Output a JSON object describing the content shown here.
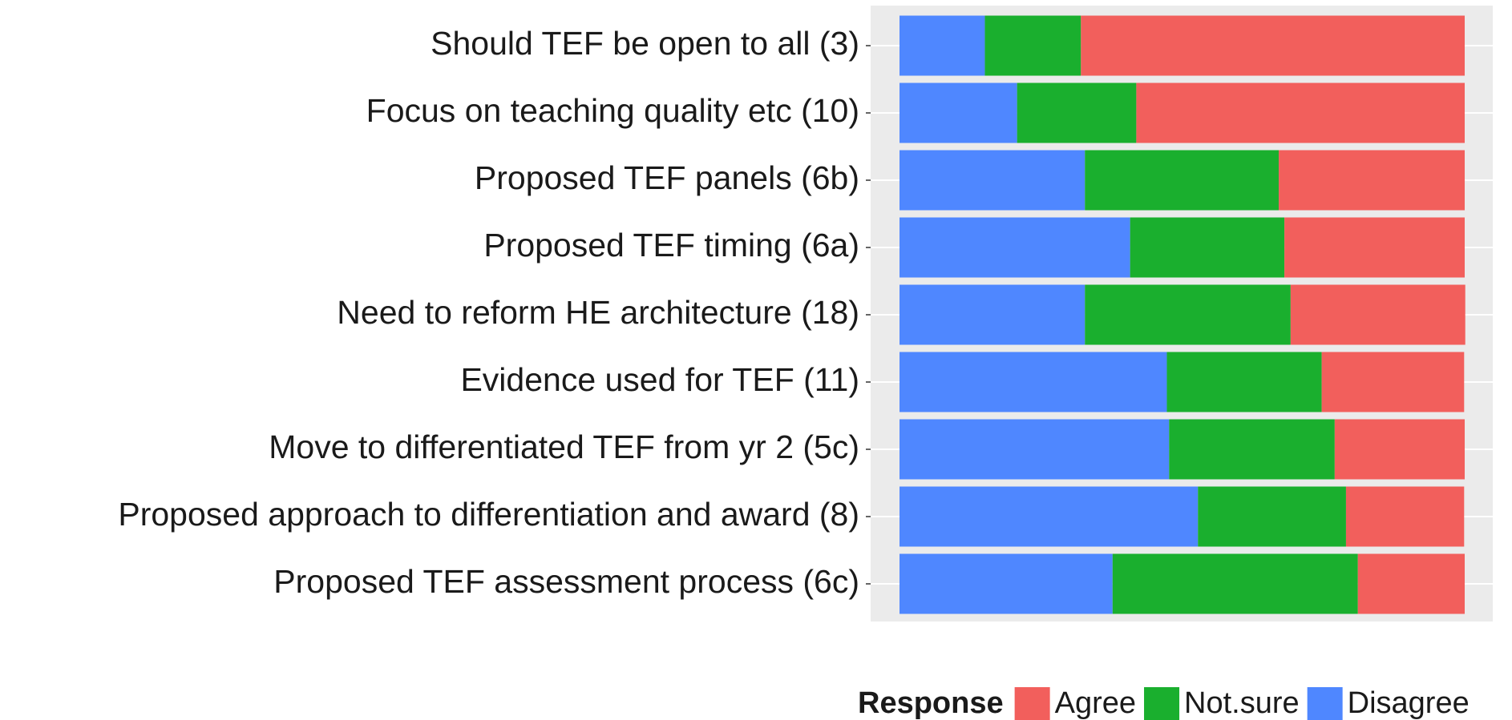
{
  "chart_data": {
    "type": "stacked_bar_horizontal",
    "categories": [
      "Should TEF be open to all (3)",
      "Focus on teaching quality etc (10)",
      "Proposed TEF panels (6b)",
      "Proposed TEF timing (6a)",
      "Need to reform HE architecture (18)",
      "Evidence used for TEF (11)",
      "Move to differentiated TEF from yr 2 (5c)",
      "Proposed approach to differentiation and award (8)",
      "Proposed TEF assessment process (6c)"
    ],
    "series": [
      {
        "name": "Agree",
        "color": "#f25f5c",
        "values": [
          0.679,
          0.581,
          0.329,
          0.319,
          0.309,
          0.252,
          0.23,
          0.209,
          0.189
        ]
      },
      {
        "name": "Not.sure",
        "color": "#1aaf2e",
        "values": [
          0.17,
          0.211,
          0.343,
          0.273,
          0.364,
          0.274,
          0.293,
          0.262,
          0.434
        ]
      },
      {
        "name": "Disagree",
        "color": "#4f87ff",
        "values": [
          0.151,
          0.208,
          0.328,
          0.408,
          0.328,
          0.473,
          0.477,
          0.528,
          0.377
        ]
      }
    ],
    "xlim": [
      0,
      1
    ],
    "legend_title": "Response",
    "legend": "bottom"
  }
}
